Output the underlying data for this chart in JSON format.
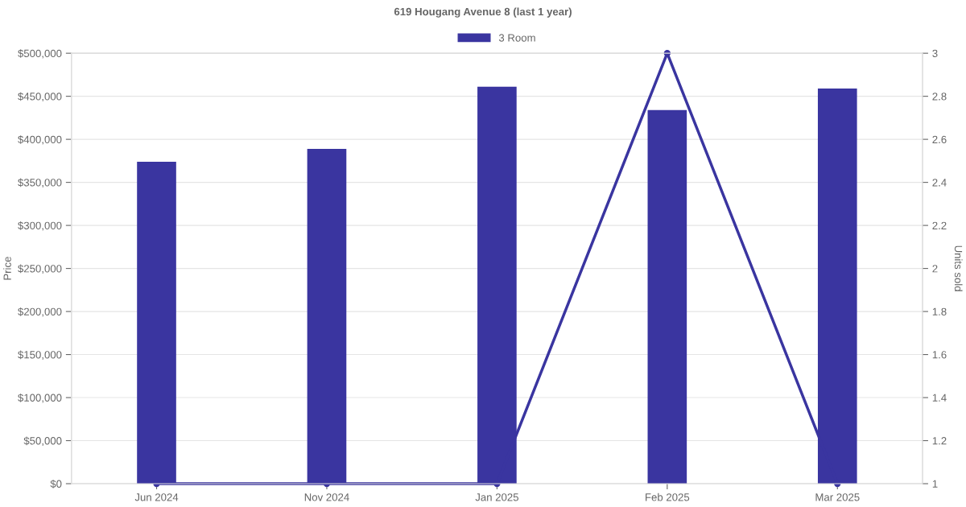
{
  "chart_data": {
    "type": "bar",
    "title": "619 Hougang Avenue 8 (last 1 year)",
    "ylabel": "Price",
    "y2label": "Units sold",
    "categories": [
      "Jun 2024",
      "Nov 2024",
      "Jan 2025",
      "Feb 2025",
      "Mar 2025"
    ],
    "series": [
      {
        "name": "3 Room",
        "color": "#3a35a0",
        "values": [
          374000,
          389000,
          461000,
          434000,
          459000
        ]
      },
      {
        "type": "line",
        "axis": "y2",
        "color": "#3a35a0",
        "marker": "circle",
        "values": [
          1,
          1,
          1,
          3,
          1
        ]
      }
    ],
    "ylim": [
      0,
      500000
    ],
    "yticks": [
      {
        "value": 0,
        "label": "$0"
      },
      {
        "value": 50000,
        "label": "$50,000"
      },
      {
        "value": 100000,
        "label": "$100,000"
      },
      {
        "value": 150000,
        "label": "$150,000"
      },
      {
        "value": 200000,
        "label": "$200,000"
      },
      {
        "value": 250000,
        "label": "$250,000"
      },
      {
        "value": 300000,
        "label": "$300,000"
      },
      {
        "value": 350000,
        "label": "$350,000"
      },
      {
        "value": 400000,
        "label": "$400,000"
      },
      {
        "value": 450000,
        "label": "$450,000"
      },
      {
        "value": 500000,
        "label": "$500,000"
      }
    ],
    "y2lim": [
      1,
      3
    ],
    "y2ticks": [
      1,
      1.2,
      1.4,
      1.6,
      1.8,
      2,
      2.2,
      2.4,
      2.6,
      2.8,
      3
    ],
    "grid": "y",
    "legend": "top"
  }
}
